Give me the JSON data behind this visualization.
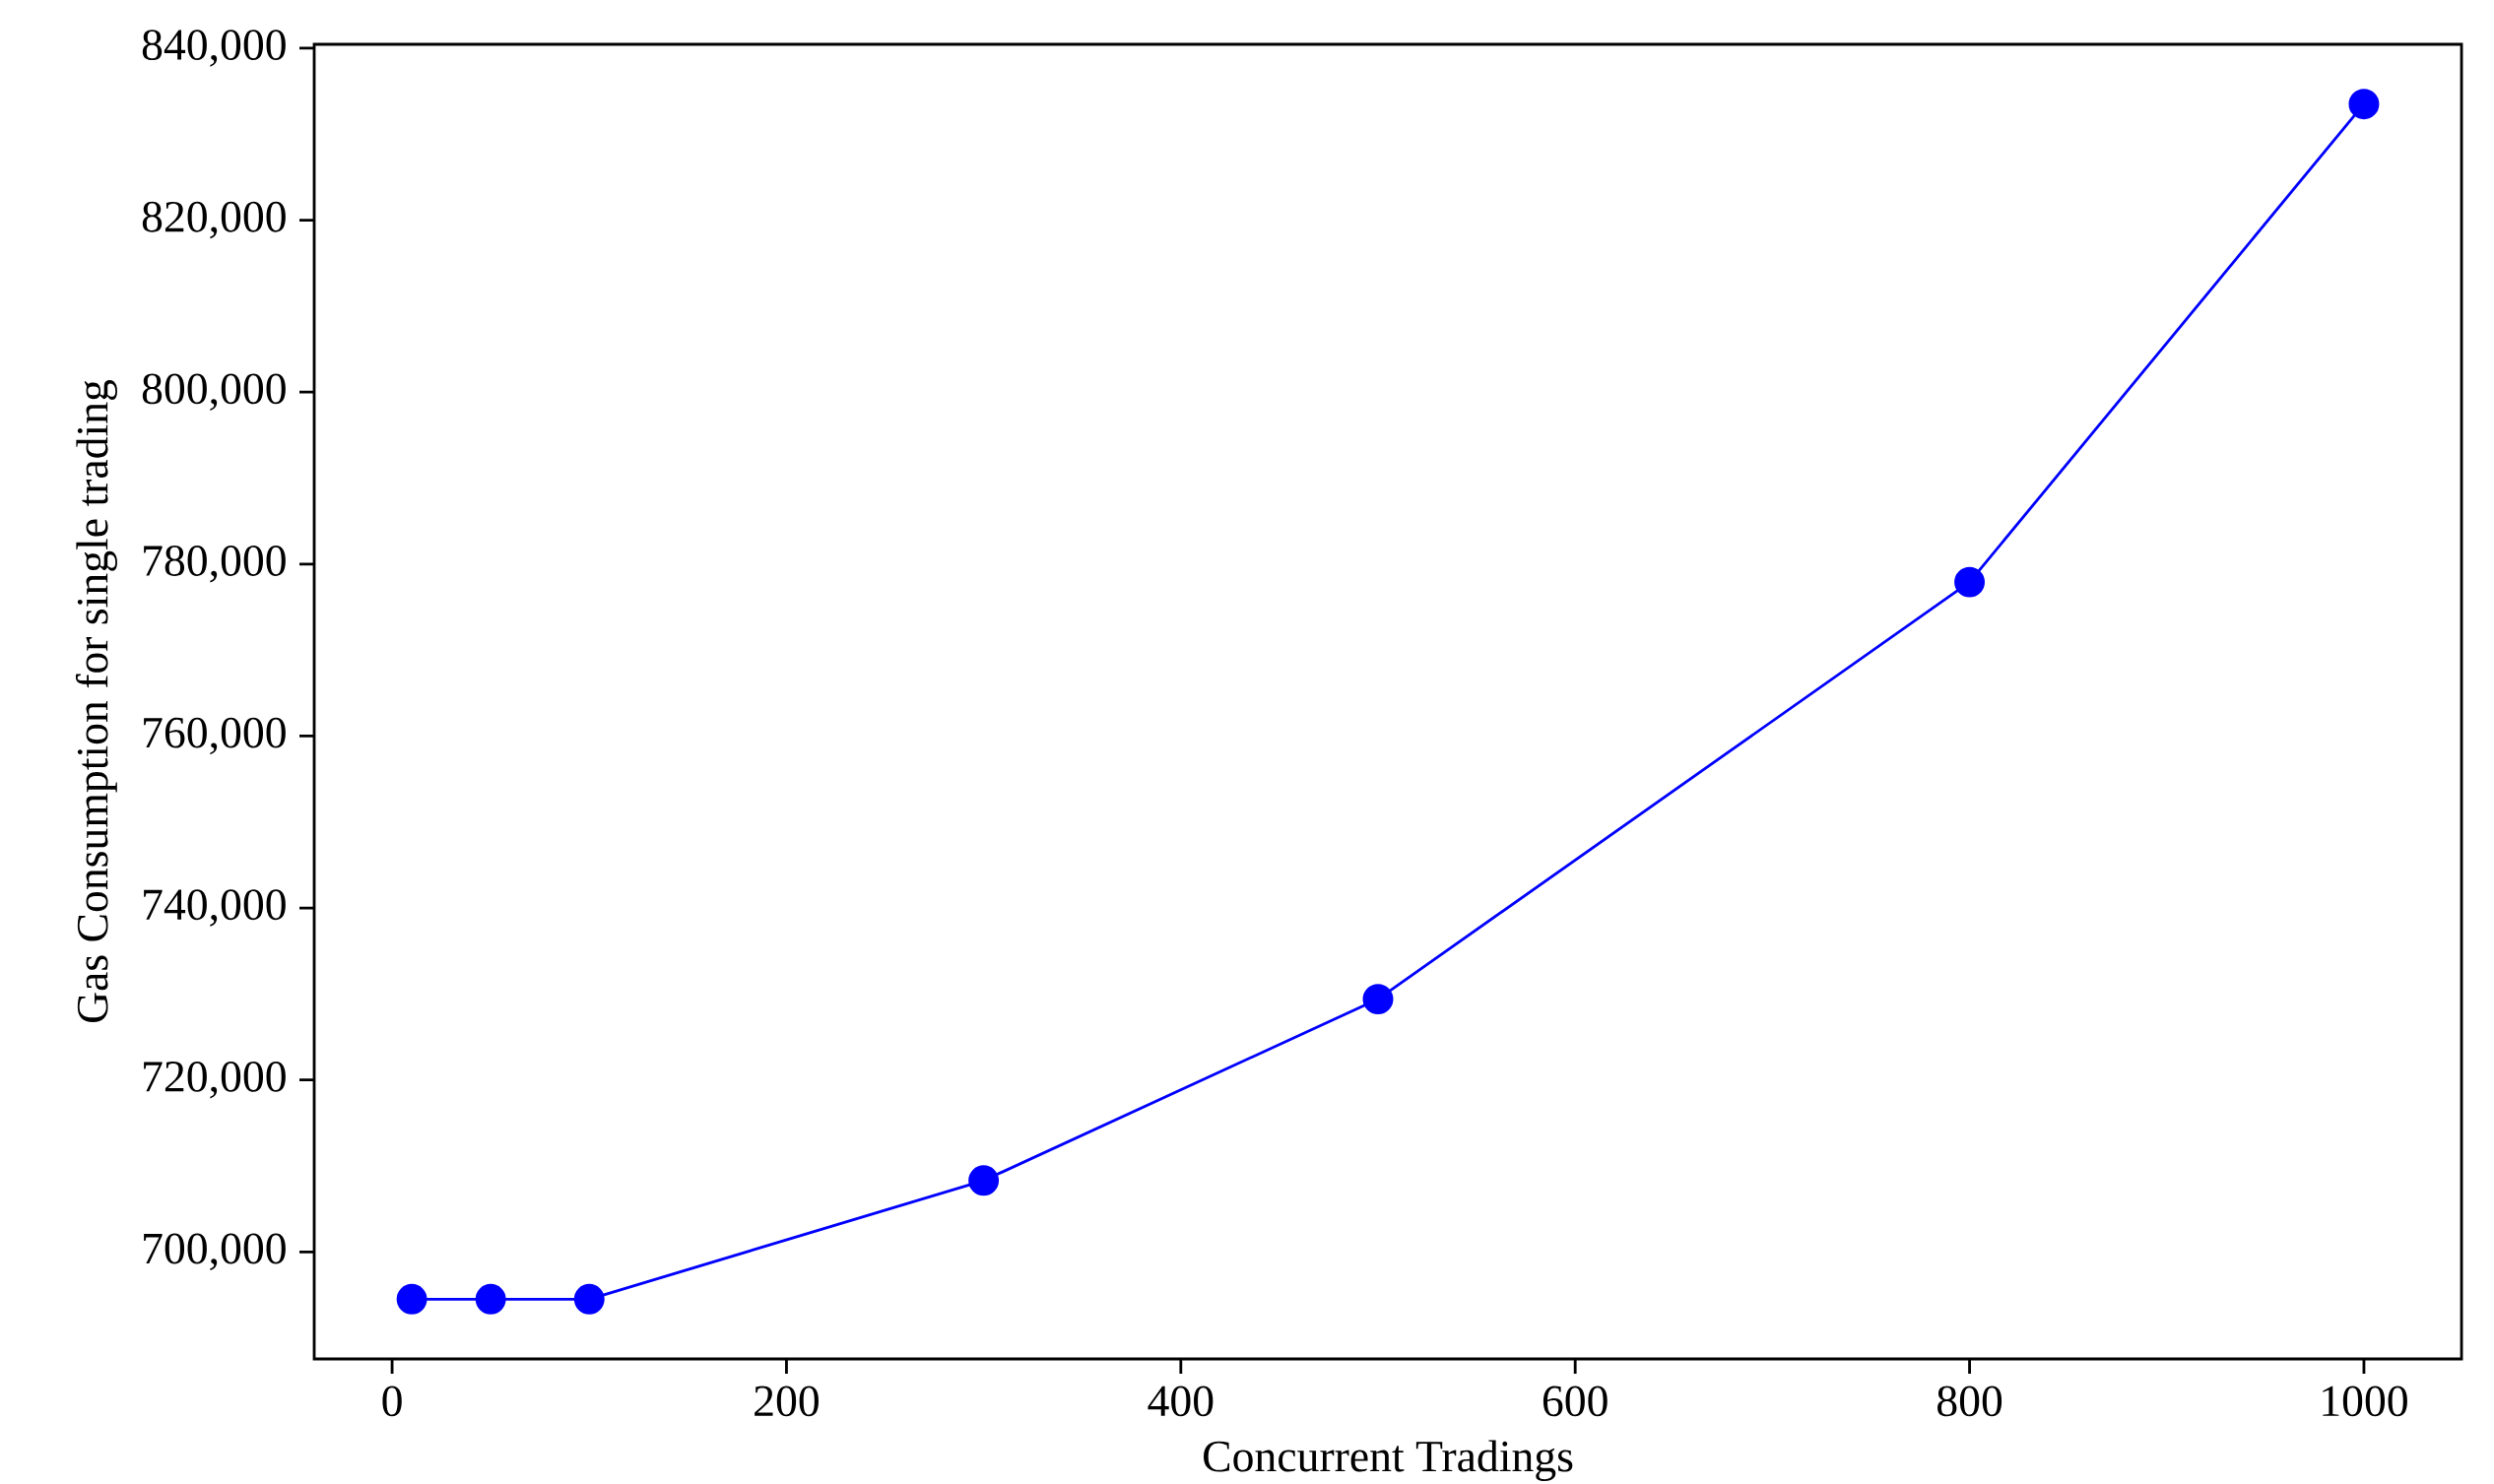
{
  "chart_data": {
    "type": "line",
    "xlabel": "Concurrent Tradings",
    "ylabel": "Gas Consumption for single trading",
    "x": [
      10,
      50,
      100,
      300,
      500,
      800,
      1000
    ],
    "series": [
      {
        "color": "#0000ff",
        "values": [
          694500,
          694500,
          694500,
          708300,
          729400,
          777900,
          833500
        ]
      }
    ],
    "xlim": [
      -39.5,
      1049.5
    ],
    "ylim": [
      687550,
      840450
    ],
    "xticks": [
      0,
      200,
      400,
      600,
      800,
      1000
    ],
    "yticks": [
      {
        "value": 700000,
        "label": "700,000"
      },
      {
        "value": 720000,
        "label": "720,000"
      },
      {
        "value": 740000,
        "label": "740,000"
      },
      {
        "value": 760000,
        "label": "760,000"
      },
      {
        "value": 780000,
        "label": "780,000"
      },
      {
        "value": 800000,
        "label": "800,000"
      },
      {
        "value": 820000,
        "label": "820,000"
      },
      {
        "value": 840000,
        "label": "840,000"
      }
    ],
    "grid": false,
    "marker": "circle",
    "line_style": "solid"
  }
}
